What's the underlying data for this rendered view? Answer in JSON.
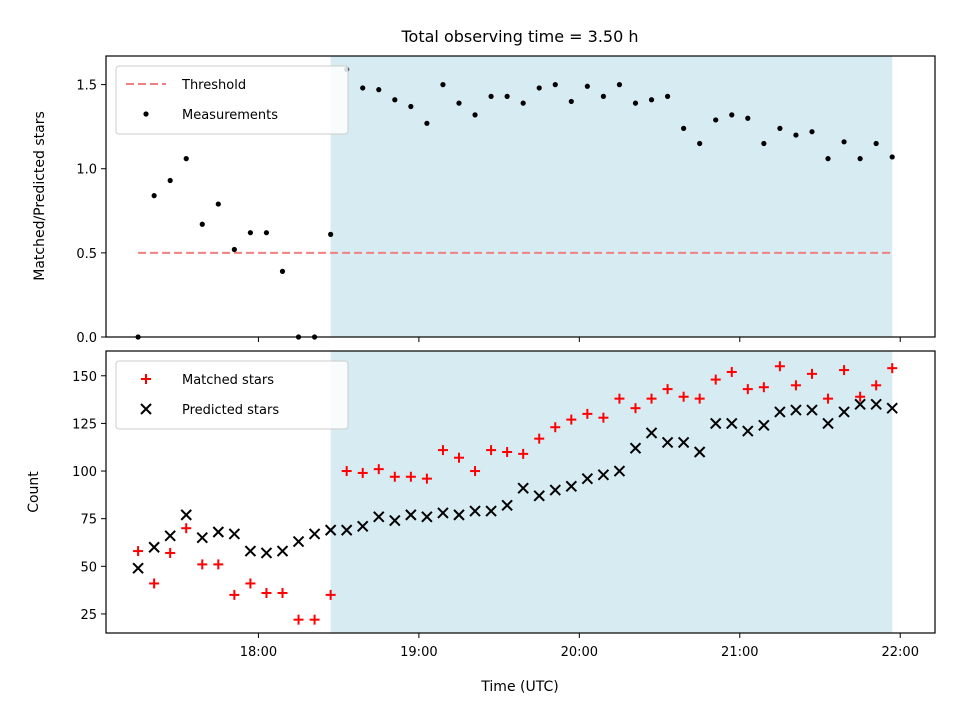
{
  "chart_data": [
    {
      "type": "scatter",
      "title": "Total observing time = 3.50 h",
      "ylabel": "Matched/Predicted stars",
      "xlim": [
        "17:03",
        "22:13"
      ],
      "ylim": [
        0,
        1.67
      ],
      "yticks": [
        "0.0",
        "0.5",
        "1.0",
        "1.5"
      ],
      "grid": false,
      "legend": {
        "position": "upper-left",
        "entries": [
          "Threshold",
          "Measurements"
        ]
      },
      "shaded_region": {
        "from": "18:27",
        "to": "21:57",
        "color": "#add8e6"
      },
      "threshold": {
        "name": "Threshold",
        "y": 0.5,
        "from": "17:15",
        "to": "21:57",
        "color": "#f08080",
        "style": "dashed"
      },
      "series": [
        {
          "name": "Measurements",
          "color": "#000000",
          "marker": "dot",
          "x": [
            "17:15",
            "17:21",
            "17:27",
            "17:33",
            "17:39",
            "17:45",
            "17:51",
            "17:57",
            "18:03",
            "18:09",
            "18:15",
            "18:21",
            "18:27",
            "18:33",
            "18:39",
            "18:45",
            "18:51",
            "18:57",
            "19:03",
            "19:09",
            "19:15",
            "19:21",
            "19:27",
            "19:33",
            "19:39",
            "19:45",
            "19:51",
            "19:57",
            "20:03",
            "20:09",
            "20:15",
            "20:21",
            "20:27",
            "20:33",
            "20:39",
            "20:45",
            "20:51",
            "20:57",
            "21:03",
            "21:09",
            "21:15",
            "21:21",
            "21:27",
            "21:33",
            "21:39",
            "21:45",
            "21:51",
            "21:57"
          ],
          "y": [
            0.0,
            0.84,
            0.93,
            1.06,
            0.67,
            0.79,
            0.52,
            0.62,
            0.62,
            0.39,
            0.0,
            0.0,
            0.61,
            1.59,
            1.48,
            1.47,
            1.41,
            1.37,
            1.27,
            1.5,
            1.39,
            1.32,
            1.43,
            1.43,
            1.39,
            1.48,
            1.5,
            1.4,
            1.49,
            1.43,
            1.5,
            1.39,
            1.41,
            1.43,
            1.24,
            1.15,
            1.29,
            1.32,
            1.3,
            1.15,
            1.24,
            1.2,
            1.22,
            1.06,
            1.16,
            1.06,
            1.15,
            1.07
          ]
        }
      ],
      "x_extra": [
        "17:21",
        "17:33",
        "17:45",
        "17:57",
        "18:09",
        "18:27"
      ],
      "note": ""
    },
    {
      "type": "scatter",
      "xlabel": "Time (UTC)",
      "ylabel": "Count",
      "xlim": [
        "17:03",
        "22:13"
      ],
      "ylim": [
        15,
        163
      ],
      "xticks": [
        "18:00",
        "19:00",
        "20:00",
        "21:00",
        "22:00"
      ],
      "yticks": [
        "25",
        "50",
        "75",
        "100",
        "125",
        "150"
      ],
      "grid": false,
      "legend": {
        "position": "upper-left",
        "entries": [
          "Matched stars",
          "Predicted stars"
        ]
      },
      "shaded_region": {
        "from": "18:27",
        "to": "21:57",
        "color": "#add8e6"
      },
      "series": [
        {
          "name": "Matched stars",
          "color": "#ff0000",
          "marker": "plus",
          "x": [
            "17:15",
            "17:21",
            "17:27",
            "17:33",
            "17:39",
            "17:45",
            "17:51",
            "17:57",
            "18:03",
            "18:09",
            "18:15",
            "18:21",
            "18:27",
            "18:33",
            "18:39",
            "18:45",
            "18:51",
            "18:57",
            "19:03",
            "19:09",
            "19:15",
            "19:21",
            "19:27",
            "19:33",
            "19:39",
            "19:45",
            "19:51",
            "19:57",
            "20:03",
            "20:09",
            "20:15",
            "20:21",
            "20:27",
            "20:33",
            "20:39",
            "20:45",
            "20:51",
            "20:57",
            "21:03",
            "21:09",
            "21:15",
            "21:21",
            "21:27",
            "21:33",
            "21:39",
            "21:45",
            "21:51",
            "21:57"
          ],
          "y": [
            58,
            41,
            57,
            70,
            51,
            51,
            35,
            41,
            36,
            36,
            22,
            22,
            35,
            100,
            99,
            101,
            97,
            97,
            96,
            111,
            107,
            100,
            111,
            110,
            109,
            117,
            123,
            127,
            130,
            128,
            138,
            133,
            138,
            143,
            139,
            138,
            148,
            152,
            143,
            144,
            155,
            145,
            151,
            138,
            153,
            139,
            145,
            154
          ]
        },
        {
          "name": "Predicted stars",
          "color": "#000000",
          "marker": "x",
          "x": [
            "17:15",
            "17:21",
            "17:27",
            "17:33",
            "17:39",
            "17:45",
            "17:51",
            "17:57",
            "18:03",
            "18:09",
            "18:15",
            "18:21",
            "18:27",
            "18:33",
            "18:39",
            "18:45",
            "18:51",
            "18:57",
            "19:03",
            "19:09",
            "19:15",
            "19:21",
            "19:27",
            "19:33",
            "19:39",
            "19:45",
            "19:51",
            "19:57",
            "20:03",
            "20:09",
            "20:15",
            "20:21",
            "20:27",
            "20:33",
            "20:39",
            "20:45",
            "20:51",
            "20:57",
            "21:03",
            "21:09",
            "21:15",
            "21:21",
            "21:27",
            "21:33",
            "21:39",
            "21:45",
            "21:51",
            "21:57"
          ],
          "y": [
            49,
            60,
            66,
            77,
            65,
            68,
            67,
            58,
            57,
            58,
            63,
            67,
            69,
            69,
            71,
            76,
            74,
            77,
            76,
            78,
            77,
            79,
            79,
            82,
            91,
            87,
            90,
            92,
            96,
            98,
            100,
            112,
            120,
            115,
            115,
            110,
            125,
            125,
            121,
            124,
            131,
            132,
            132,
            125,
            131,
            135,
            135,
            133
          ]
        }
      ]
    }
  ]
}
